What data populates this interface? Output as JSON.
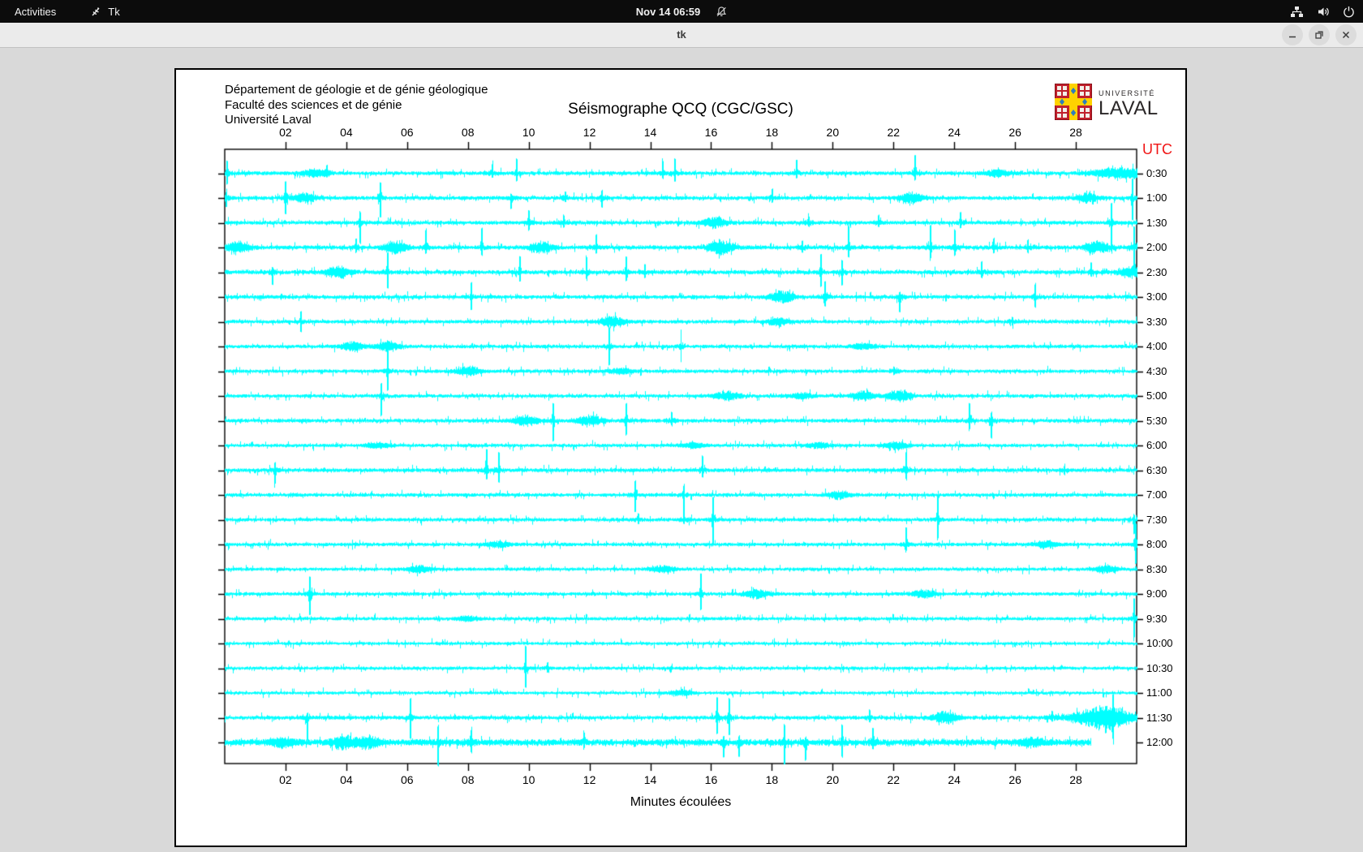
{
  "topbar": {
    "activities_label": "Activities",
    "app_label": "Tk",
    "clock": "Nov 14 06:59",
    "icon_names": [
      "tk-feather-icon",
      "bell-slash-icon",
      "network-wired-icon",
      "volume-icon",
      "power-icon"
    ]
  },
  "window": {
    "title": "tk",
    "controls": [
      "minimize",
      "maximize",
      "close"
    ]
  },
  "document": {
    "institution_lines": [
      "Département de géologie et de génie géologique",
      "Faculté des sciences et de génie",
      "Université Laval"
    ],
    "logo": {
      "top": "UNIVERSITÉ",
      "bottom": "LAVAL",
      "shield_red": "#c0202c",
      "shield_yellow": "#ffd200",
      "shield_blue": "#2e7dbd"
    }
  },
  "chart_data": {
    "type": "line",
    "title": "Séismographe QCQ (CGC/GSC)",
    "xlabel": "Minutes écoulées",
    "right_axis_label": "UTC",
    "x_range": [
      0,
      30
    ],
    "x_tick_labels": [
      "02",
      "04",
      "06",
      "08",
      "10",
      "12",
      "14",
      "16",
      "18",
      "20",
      "22",
      "24",
      "26",
      "28"
    ],
    "x_tick_minutes": [
      2,
      4,
      6,
      8,
      10,
      12,
      14,
      16,
      18,
      20,
      22,
      24,
      26,
      28
    ],
    "minutes_per_row": 30,
    "trace_color": "#00ffff",
    "axis_color": "#000000",
    "utc_color": "#f01414",
    "event_format": "[minute, up_px, down_px, kind: s=spike b=burst B=wide-burst]",
    "traces": [
      {
        "label": "0:30",
        "end_minute": 30,
        "noise": 1.4,
        "events": [
          [
            0.08,
            14,
            12,
            "s"
          ],
          [
            2.9,
            4,
            4,
            "b"
          ],
          [
            3.35,
            8,
            3,
            "s"
          ],
          [
            8.8,
            10,
            4,
            "s"
          ],
          [
            9.6,
            16,
            8,
            "s"
          ],
          [
            14.4,
            14,
            5,
            "s"
          ],
          [
            14.8,
            16,
            9,
            "s"
          ],
          [
            18.8,
            15,
            5,
            "s"
          ],
          [
            22.7,
            20,
            7,
            "s"
          ],
          [
            25.4,
            4,
            4,
            "b"
          ],
          [
            29.5,
            6,
            6,
            "B"
          ]
        ]
      },
      {
        "label": "1:00",
        "end_minute": 30,
        "noise": 1.4,
        "events": [
          [
            0.05,
            6,
            10,
            "s"
          ],
          [
            2.0,
            18,
            18,
            "s"
          ],
          [
            2.6,
            5,
            5,
            "b"
          ],
          [
            5.1,
            18,
            22,
            "s"
          ],
          [
            9.4,
            4,
            12,
            "s"
          ],
          [
            11.2,
            6,
            3,
            "s"
          ],
          [
            12.4,
            8,
            10,
            "s"
          ],
          [
            18.0,
            9,
            4,
            "s"
          ],
          [
            22.6,
            6,
            6,
            "b"
          ],
          [
            28.4,
            5,
            5,
            "b"
          ],
          [
            29.85,
            22,
            26,
            "s"
          ]
        ]
      },
      {
        "label": "1:30",
        "end_minute": 30,
        "noise": 1.4,
        "events": [
          [
            4.45,
            12,
            24,
            "s"
          ],
          [
            10.0,
            14,
            8,
            "s"
          ],
          [
            11.15,
            8,
            4,
            "s"
          ],
          [
            16.1,
            6,
            6,
            "b"
          ],
          [
            19.2,
            6,
            3,
            "s"
          ],
          [
            21.5,
            8,
            4,
            "s"
          ],
          [
            24.2,
            12,
            5,
            "s"
          ],
          [
            29.15,
            22,
            28,
            "s"
          ]
        ]
      },
      {
        "label": "2:00",
        "end_minute": 30,
        "noise": 1.5,
        "events": [
          [
            0.4,
            6,
            6,
            "b"
          ],
          [
            4.3,
            9,
            4,
            "s"
          ],
          [
            5.6,
            7,
            7,
            "b"
          ],
          [
            6.6,
            20,
            6,
            "s"
          ],
          [
            8.45,
            22,
            8,
            "s"
          ],
          [
            10.4,
            6,
            6,
            "b"
          ],
          [
            12.2,
            14,
            5,
            "s"
          ],
          [
            16.3,
            8,
            8,
            "b"
          ],
          [
            19.0,
            6,
            4,
            "s"
          ],
          [
            20.5,
            24,
            10,
            "s"
          ],
          [
            23.2,
            26,
            12,
            "s"
          ],
          [
            24.0,
            20,
            8,
            "s"
          ],
          [
            25.3,
            10,
            5,
            "s"
          ],
          [
            26.4,
            8,
            4,
            "s"
          ],
          [
            28.7,
            7,
            7,
            "b"
          ],
          [
            29.9,
            24,
            24,
            "s"
          ]
        ]
      },
      {
        "label": "2:30",
        "end_minute": 30,
        "noise": 1.5,
        "events": [
          [
            1.55,
            4,
            14,
            "s"
          ],
          [
            3.7,
            6,
            6,
            "b"
          ],
          [
            5.35,
            22,
            18,
            "s"
          ],
          [
            9.7,
            18,
            10,
            "s"
          ],
          [
            11.9,
            16,
            6,
            "s"
          ],
          [
            13.2,
            18,
            9,
            "s"
          ],
          [
            13.8,
            8,
            5,
            "s"
          ],
          [
            19.6,
            20,
            16,
            "s"
          ],
          [
            20.3,
            12,
            14,
            "s"
          ],
          [
            24.9,
            12,
            5,
            "s"
          ],
          [
            28.5,
            10,
            4,
            "s"
          ],
          [
            29.8,
            6,
            6,
            "b"
          ]
        ]
      },
      {
        "label": "3:00",
        "end_minute": 30,
        "noise": 1.4,
        "events": [
          [
            8.1,
            16,
            14,
            "s"
          ],
          [
            18.3,
            7,
            7,
            "b"
          ],
          [
            19.75,
            18,
            10,
            "s"
          ],
          [
            22.2,
            5,
            17,
            "s"
          ],
          [
            26.65,
            14,
            11,
            "s"
          ]
        ]
      },
      {
        "label": "3:30",
        "end_minute": 30,
        "noise": 1.3,
        "events": [
          [
            2.5,
            11,
            11,
            "s"
          ],
          [
            12.75,
            6,
            6,
            "b"
          ],
          [
            18.2,
            4,
            4,
            "b"
          ],
          [
            25.9,
            4,
            3,
            "s"
          ]
        ]
      },
      {
        "label": "4:00",
        "end_minute": 30,
        "noise": 1.3,
        "events": [
          [
            4.2,
            5,
            5,
            "b"
          ],
          [
            5.35,
            5,
            5,
            "b"
          ],
          [
            12.65,
            22,
            22,
            "s"
          ],
          [
            15.0,
            18,
            16,
            "s"
          ],
          [
            21.0,
            3,
            3,
            "b"
          ]
        ]
      },
      {
        "label": "4:30",
        "end_minute": 30,
        "noise": 1.3,
        "events": [
          [
            5.35,
            26,
            22,
            "s"
          ],
          [
            8.0,
            5,
            5,
            "b"
          ],
          [
            13.0,
            3,
            3,
            "b"
          ],
          [
            22.0,
            4,
            3,
            "s"
          ]
        ]
      },
      {
        "label": "5:00",
        "end_minute": 30,
        "noise": 1.3,
        "events": [
          [
            5.15,
            14,
            22,
            "s"
          ],
          [
            16.5,
            5,
            5,
            "b"
          ],
          [
            19.0,
            3,
            3,
            "b"
          ],
          [
            21.0,
            5,
            5,
            "b"
          ],
          [
            22.2,
            6,
            6,
            "b"
          ]
        ]
      },
      {
        "label": "5:30",
        "end_minute": 30,
        "noise": 1.4,
        "events": [
          [
            9.9,
            6,
            6,
            "b"
          ],
          [
            10.8,
            20,
            24,
            "s"
          ],
          [
            12.0,
            6,
            6,
            "b"
          ],
          [
            13.2,
            20,
            16,
            "s"
          ],
          [
            14.7,
            8,
            4,
            "s"
          ],
          [
            24.5,
            20,
            8,
            "s"
          ],
          [
            25.2,
            9,
            20,
            "s"
          ]
        ]
      },
      {
        "label": "6:00",
        "end_minute": 30,
        "noise": 1.2,
        "events": [
          [
            5.0,
            3,
            3,
            "b"
          ],
          [
            15.4,
            3,
            3,
            "b"
          ],
          [
            19.5,
            3,
            3,
            "b"
          ],
          [
            22.1,
            4,
            4,
            "b"
          ]
        ]
      },
      {
        "label": "6:30",
        "end_minute": 30,
        "noise": 1.4,
        "events": [
          [
            1.65,
            8,
            15,
            "s"
          ],
          [
            8.6,
            24,
            10,
            "s"
          ],
          [
            9.0,
            20,
            14,
            "s"
          ],
          [
            15.7,
            16,
            7,
            "s"
          ],
          [
            22.4,
            20,
            9,
            "s"
          ],
          [
            27.6,
            4,
            4,
            "s"
          ]
        ]
      },
      {
        "label": "7:00",
        "end_minute": 30,
        "noise": 1.3,
        "events": [
          [
            13.5,
            16,
            20,
            "s"
          ],
          [
            15.1,
            10,
            24,
            "s"
          ],
          [
            20.2,
            4,
            4,
            "b"
          ]
        ]
      },
      {
        "label": "7:30",
        "end_minute": 30,
        "noise": 1.3,
        "events": [
          [
            13.6,
            6,
            4,
            "s"
          ],
          [
            15.1,
            10,
            4,
            "s"
          ],
          [
            16.05,
            26,
            30,
            "s"
          ],
          [
            23.45,
            30,
            22,
            "s"
          ],
          [
            29.9,
            4,
            16,
            "s"
          ]
        ]
      },
      {
        "label": "8:00",
        "end_minute": 30,
        "noise": 1.3,
        "events": [
          [
            9.0,
            3,
            3,
            "b"
          ],
          [
            22.4,
            20,
            6,
            "s"
          ],
          [
            27.0,
            4,
            4,
            "b"
          ],
          [
            29.95,
            24,
            22,
            "s"
          ]
        ]
      },
      {
        "label": "8:30",
        "end_minute": 30,
        "noise": 1.2,
        "events": [
          [
            6.4,
            4,
            4,
            "b"
          ],
          [
            14.4,
            4,
            4,
            "b"
          ],
          [
            29.0,
            4,
            4,
            "b"
          ]
        ]
      },
      {
        "label": "9:00",
        "end_minute": 30,
        "noise": 1.3,
        "events": [
          [
            2.8,
            20,
            24,
            "s"
          ],
          [
            15.65,
            24,
            18,
            "s"
          ],
          [
            17.5,
            5,
            5,
            "b"
          ],
          [
            23.0,
            4,
            4,
            "b"
          ]
        ]
      },
      {
        "label": "9:30",
        "end_minute": 30,
        "noise": 1.2,
        "events": [
          [
            8.0,
            3,
            3,
            "b"
          ],
          [
            29.9,
            24,
            22,
            "s"
          ]
        ]
      },
      {
        "label": "10:00",
        "end_minute": 30,
        "noise": 1.1,
        "events": []
      },
      {
        "label": "10:30",
        "end_minute": 30,
        "noise": 1.2,
        "events": [
          [
            9.9,
            26,
            22,
            "s"
          ],
          [
            10.6,
            6,
            4,
            "s"
          ]
        ]
      },
      {
        "label": "11:00",
        "end_minute": 30,
        "noise": 1.1,
        "events": [
          [
            15.0,
            3,
            3,
            "b"
          ]
        ]
      },
      {
        "label": "11:30",
        "end_minute": 30,
        "noise": 1.4,
        "events": [
          [
            2.7,
            4,
            26,
            "s"
          ],
          [
            6.1,
            22,
            24,
            "s"
          ],
          [
            16.2,
            24,
            18,
            "s"
          ],
          [
            16.6,
            22,
            20,
            "s"
          ],
          [
            21.2,
            8,
            4,
            "s"
          ],
          [
            23.7,
            7,
            7,
            "b"
          ],
          [
            27.2,
            6,
            3,
            "s"
          ],
          [
            28.9,
            14,
            14,
            "B"
          ],
          [
            29.2,
            16,
            20,
            "s"
          ]
        ]
      },
      {
        "label": "12:00",
        "end_minute": 28.5,
        "noise": 2.3,
        "events": [
          [
            1.9,
            5,
            5,
            "b"
          ],
          [
            3.9,
            6,
            6,
            "b"
          ],
          [
            4.7,
            6,
            6,
            "b"
          ],
          [
            7.0,
            16,
            26,
            "s"
          ],
          [
            8.1,
            12,
            10,
            "s"
          ],
          [
            11.8,
            10,
            4,
            "s"
          ],
          [
            16.4,
            5,
            16,
            "s"
          ],
          [
            16.9,
            5,
            14,
            "s"
          ],
          [
            18.4,
            20,
            24,
            "s"
          ],
          [
            19.1,
            4,
            20,
            "s"
          ],
          [
            20.3,
            20,
            16,
            "s"
          ],
          [
            21.3,
            16,
            5,
            "s"
          ],
          [
            26.5,
            4,
            4,
            "b"
          ]
        ]
      }
    ]
  }
}
